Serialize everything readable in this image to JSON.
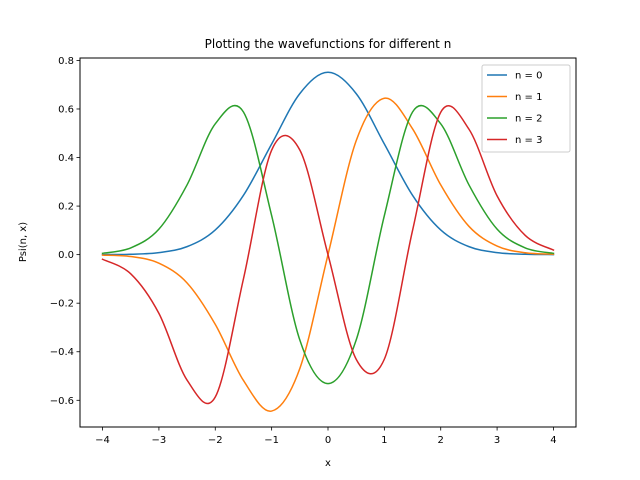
{
  "chart_data": {
    "type": "line",
    "title": "Plotting the wavefunctions for different n",
    "xlabel": "x",
    "ylabel": "Psi(n, x)",
    "xlim": [
      -4.4,
      4.4
    ],
    "ylim": [
      -0.71,
      0.81
    ],
    "xticks": [
      -4,
      -3,
      -2,
      -1,
      0,
      1,
      2,
      3,
      4
    ],
    "xtick_labels": [
      "−4",
      "−3",
      "−2",
      "−1",
      "0",
      "1",
      "2",
      "3",
      "4"
    ],
    "yticks": [
      -0.6,
      -0.4,
      -0.2,
      0.0,
      0.2,
      0.4,
      0.6,
      0.8
    ],
    "ytick_labels": [
      "−0.6",
      "−0.4",
      "−0.2",
      "0.0",
      "0.2",
      "0.4",
      "0.6",
      "0.8"
    ],
    "grid": false,
    "legend_position": "top-right",
    "x": [
      -4.0,
      -3.5,
      -3.0,
      -2.5,
      -2.0,
      -1.5,
      -1.0,
      -0.5,
      0.0,
      0.5,
      1.0,
      1.5,
      2.0,
      2.5,
      3.0,
      3.5,
      4.0
    ],
    "series": [
      {
        "name": "n = 0",
        "color": "#1f77b4",
        "values": [
          0.0003,
          0.0016,
          0.0084,
          0.033,
          0.1016,
          0.2443,
          0.4556,
          0.6633,
          0.7511,
          0.6633,
          0.4556,
          0.2443,
          0.1016,
          0.033,
          0.0084,
          0.0016,
          0.0003
        ]
      },
      {
        "name": "n = 1",
        "color": "#ff7f0e",
        "values": [
          -0.0019,
          -0.0077,
          -0.0354,
          -0.1167,
          -0.2873,
          -0.5183,
          -0.6443,
          -0.469,
          0.0,
          0.469,
          0.6443,
          0.5183,
          0.2873,
          0.1167,
          0.0354,
          0.0077,
          0.0019
        ]
      },
      {
        "name": "n = 2",
        "color": "#2ca02c",
        "values": [
          0.0055,
          0.0278,
          0.105,
          0.2876,
          0.5389,
          0.5875,
          0.1611,
          -0.3517,
          -0.5311,
          -0.3517,
          0.1611,
          0.5875,
          0.5389,
          0.2876,
          0.105,
          0.0278,
          0.0055
        ]
      },
      {
        "name": "n = 3",
        "color": "#d62728",
        "values": [
          -0.019,
          -0.079,
          -0.2421,
          -0.517,
          -0.5866,
          -0.0998,
          0.4304,
          0.4309,
          0.0,
          -0.4309,
          -0.4304,
          0.0998,
          0.5866,
          0.517,
          0.2421,
          0.079,
          0.019
        ]
      }
    ]
  }
}
